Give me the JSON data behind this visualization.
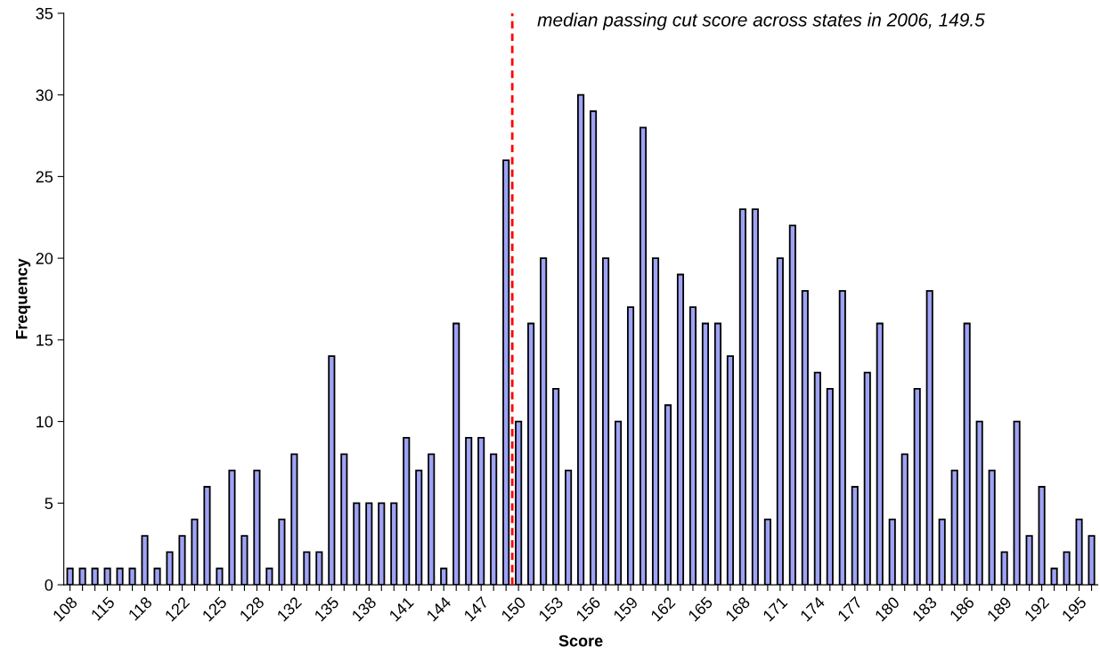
{
  "chart_data": {
    "type": "bar",
    "xlabel": "Score",
    "ylabel": "Frequency",
    "categories": [
      "108",
      null,
      null,
      "115",
      null,
      null,
      "118",
      null,
      null,
      "122",
      null,
      null,
      "125",
      null,
      null,
      "128",
      null,
      null,
      "132",
      null,
      null,
      "135",
      null,
      null,
      "138",
      null,
      null,
      "141",
      null,
      null,
      "144",
      null,
      null,
      "147",
      null,
      null,
      "150",
      null,
      null,
      "153",
      null,
      null,
      "156",
      null,
      null,
      "159",
      null,
      null,
      "162",
      null,
      null,
      "165",
      null,
      null,
      "168",
      null,
      null,
      "171",
      null,
      null,
      "174",
      null,
      null,
      "177",
      null,
      null,
      "180",
      null,
      null,
      "183",
      null,
      null,
      "186",
      null,
      null,
      "189",
      null,
      null,
      "192",
      null,
      null,
      "195",
      null
    ],
    "values": [
      1,
      1,
      1,
      1,
      1,
      1,
      3,
      1,
      2,
      3,
      4,
      6,
      1,
      7,
      3,
      7,
      1,
      4,
      8,
      2,
      2,
      14,
      8,
      5,
      5,
      5,
      5,
      9,
      7,
      8,
      1,
      16,
      9,
      9,
      8,
      26,
      10,
      16,
      20,
      12,
      7,
      30,
      29,
      20,
      10,
      17,
      28,
      20,
      11,
      19,
      17,
      16,
      16,
      14,
      23,
      23,
      4,
      20,
      22,
      18,
      13,
      12,
      18,
      6,
      13,
      16,
      4,
      8,
      12,
      18,
      4,
      7,
      16,
      10,
      7,
      2,
      10,
      3,
      6,
      1,
      2,
      4,
      3
    ],
    "color": "#9fa3f5",
    "ylim": [
      0,
      35
    ],
    "yticks": [
      0,
      5,
      10,
      15,
      20,
      25,
      30,
      35
    ],
    "annotations": [
      "median passing cut score across states in 2006, 149.5"
    ],
    "ref_lines": [
      {
        "axis": "x",
        "value": "150",
        "color": "#ff0000",
        "line_style": "dashed"
      }
    ],
    "grid": false
  }
}
